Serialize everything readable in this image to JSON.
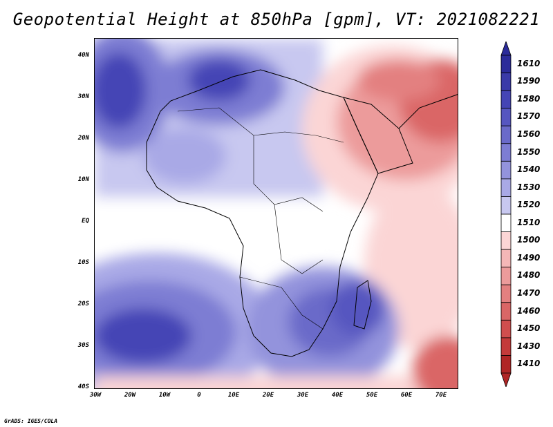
{
  "title": "Geopotential Height at 850hPa [gpm], VT: 2021082221",
  "lat_labels": [
    "40N",
    "30N",
    "20N",
    "10N",
    "EQ",
    "10S",
    "20S",
    "30S",
    "40S"
  ],
  "lon_labels": [
    "30W",
    "20W",
    "10W",
    "0",
    "10E",
    "20E",
    "30E",
    "40E",
    "50E",
    "60E",
    "70E"
  ],
  "colorbar": {
    "levels": [
      "1610",
      "1590",
      "1580",
      "1570",
      "1560",
      "1550",
      "1540",
      "1530",
      "1520",
      "1510",
      "1500",
      "1490",
      "1480",
      "1470",
      "1460",
      "1450",
      "1430",
      "1410"
    ],
    "colors": [
      "#2b2b9a",
      "#3a3aa8",
      "#4545b5",
      "#5656c0",
      "#6a6ac9",
      "#7d7dd3",
      "#9393dc",
      "#a9a9e6",
      "#c8c8f0",
      "#ffffff",
      "#fbd5d5",
      "#f4b7b7",
      "#ec9b9b",
      "#e38080",
      "#da6666",
      "#d04e4e",
      "#c43a3a",
      "#b02525"
    ]
  },
  "credit": "GrADS: IGES/COLA"
}
